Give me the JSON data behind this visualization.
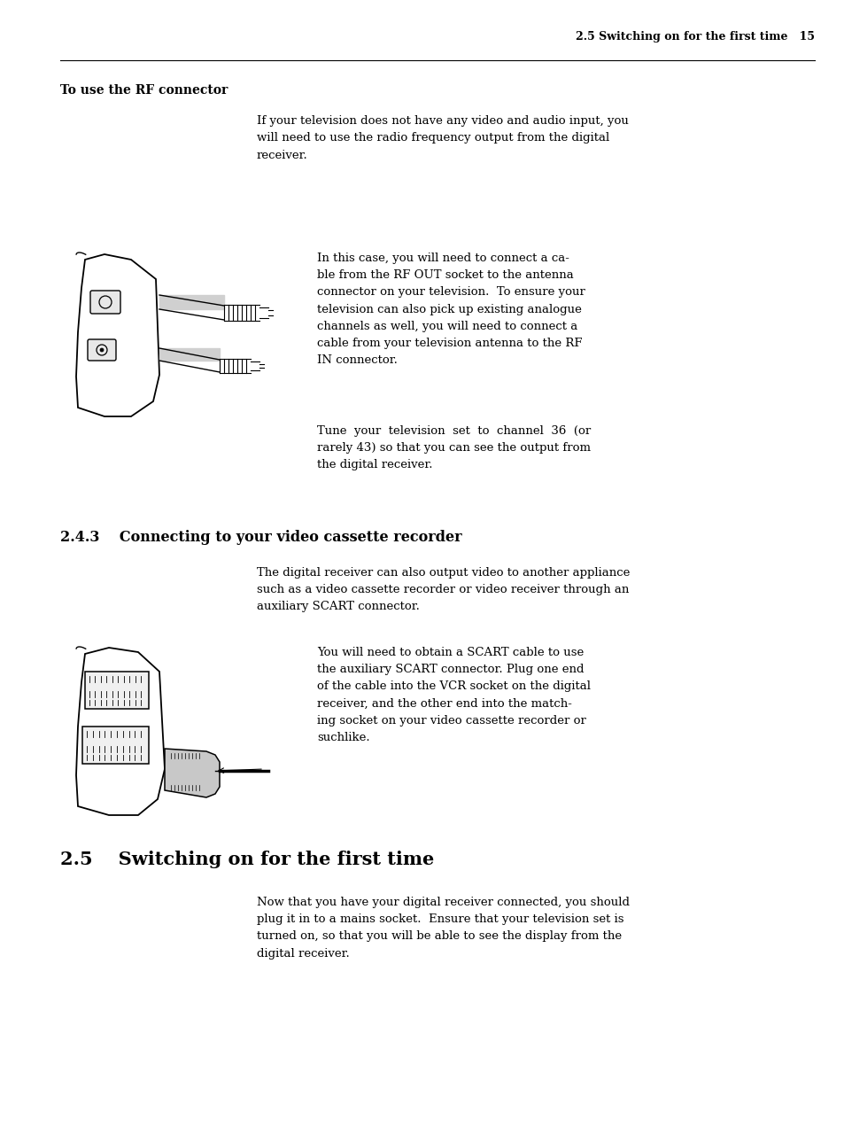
{
  "bg_color": "#ffffff",
  "text_color": "#000000",
  "header_text": "2.5 Switching on for the first time   15",
  "section_rf_title": "To use the RF connector",
  "section_rf_para1": "If your television does not have any video and audio input, you\nwill need to use the radio frequency output from the digital\nreceiver.",
  "section_rf_para2": "In this case, you will need to connect a ca-\nble from the RF OUT socket to the antenna\nconnector on your television.  To ensure your\ntelevision can also pick up existing analogue\nchannels as well, you will need to connect a\ncable from your television antenna to the RF\nIN connector.",
  "section_rf_para3": "Tune  your  television  set  to  channel  36  (or\nrarely 43) so that you can see the output from\nthe digital receiver.",
  "section_243_title": "2.4.3    Connecting to your video cassette recorder",
  "section_243_para1": "The digital receiver can also output video to another appliance\nsuch as a video cassette recorder or video receiver through an\nauxiliary SCART connector.",
  "section_243_para2": "You will need to obtain a SCART cable to use\nthe auxiliary SCART connector. Plug one end\nof the cable into the VCR socket on the digital\nreceiver, and the other end into the match-\ning socket on your video cassette recorder or\nsuchlike.",
  "section_25_title": "2.5    Switching on for the first time",
  "section_25_para1": "Now that you have your digital receiver connected, you should\nplug it in to a mains socket.  Ensure that your television set is\nturned on, so that you will be able to see the display from the\ndigital receiver.",
  "lm": 0.072,
  "rm": 0.965,
  "col2": 0.305,
  "col3": 0.375
}
